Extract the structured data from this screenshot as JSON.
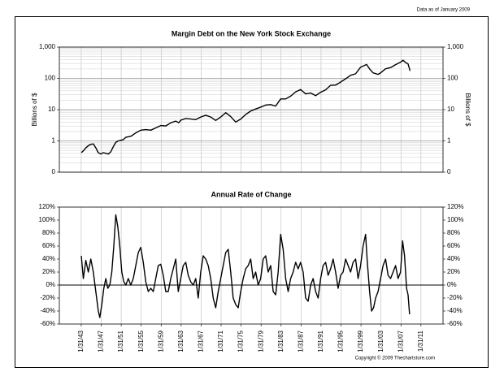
{
  "note": "Data as of January 2009",
  "copyright": "Copyright © 2009 Thechartstore.com",
  "chart_data": [
    {
      "type": "line",
      "title": "Margin Debt on the New York Stock Exchange",
      "y_label": "Billions of $",
      "log_scale": true,
      "grid": "both",
      "color": "#000000",
      "xlim": [
        1938.7,
        2015.5
      ],
      "xticks": [
        1943.08,
        1947.08,
        1951.08,
        1955.08,
        1959.08,
        1963.08,
        1967.08,
        1971.08,
        1975.08,
        1979.08,
        1983.08,
        1987.08,
        1991.08,
        1995.08,
        1999.08,
        2003.08,
        2007.08,
        2011.08
      ],
      "ylim": [
        0.1,
        1000
      ],
      "yticks": [
        {
          "value": 0.1,
          "label": "0"
        },
        1,
        10,
        100,
        {
          "value": 1000,
          "label": "1,000"
        }
      ],
      "x": [
        1943.1,
        1943.6,
        1944,
        1944.5,
        1945,
        1945.5,
        1946,
        1946.5,
        1947,
        1947.5,
        1948,
        1948.5,
        1949,
        1949.5,
        1950,
        1950.5,
        1951,
        1951.5,
        1952,
        1953,
        1954,
        1955,
        1956,
        1957,
        1958,
        1959,
        1960,
        1961,
        1962,
        1962.6,
        1963,
        1964,
        1965,
        1966,
        1967,
        1968,
        1969,
        1970,
        1971,
        1972,
        1973,
        1974,
        1975,
        1976,
        1977,
        1978,
        1979,
        1980,
        1981,
        1982,
        1983,
        1984,
        1985,
        1986,
        1987,
        1988,
        1989,
        1990,
        1991,
        1992,
        1993,
        1994,
        1995,
        1996,
        1997,
        1998,
        1999,
        2000.2,
        2000.8,
        2001.5,
        2002.5,
        2003,
        2004,
        2005,
        2006,
        2007,
        2007.5,
        2008,
        2008.5,
        2008.9
      ],
      "values": [
        0.42,
        0.5,
        0.6,
        0.7,
        0.78,
        0.8,
        0.6,
        0.42,
        0.38,
        0.42,
        0.4,
        0.38,
        0.45,
        0.65,
        0.9,
        1.0,
        1.05,
        1.1,
        1.3,
        1.4,
        1.8,
        2.2,
        2.3,
        2.2,
        2.6,
        3.1,
        3.0,
        3.8,
        4.3,
        3.8,
        4.6,
        5.2,
        5.0,
        4.8,
        5.8,
        6.6,
        5.8,
        4.5,
        5.8,
        8.0,
        6.0,
        4.0,
        5.0,
        7.0,
        9.0,
        10.5,
        12,
        14,
        14.5,
        13,
        22,
        22,
        27,
        37,
        44,
        32,
        34,
        28,
        36,
        43,
        60,
        61,
        76,
        97,
        126,
        140,
        228,
        278,
        200,
        150,
        134,
        150,
        203,
        221,
        275,
        330,
        381,
        320,
        290,
        175
      ]
    },
    {
      "type": "line",
      "title": "Annual Rate of Change",
      "log_scale": false,
      "grid": "x",
      "zero_line": true,
      "color": "#000000",
      "xlim": [
        1938.7,
        2015.5
      ],
      "xticks": [
        {
          "value": 1943.08,
          "label": "1/31/43"
        },
        {
          "value": 1947.08,
          "label": "1/31/47"
        },
        {
          "value": 1951.08,
          "label": "1/31/51"
        },
        {
          "value": 1955.08,
          "label": "1/31/55"
        },
        {
          "value": 1959.08,
          "label": "1/31/59"
        },
        {
          "value": 1963.08,
          "label": "1/31/63"
        },
        {
          "value": 1967.08,
          "label": "1/31/67"
        },
        {
          "value": 1971.08,
          "label": "1/31/71"
        },
        {
          "value": 1975.08,
          "label": "1/31/75"
        },
        {
          "value": 1979.08,
          "label": "1/31/79"
        },
        {
          "value": 1983.08,
          "label": "1/31/83"
        },
        {
          "value": 1987.08,
          "label": "1/31/87"
        },
        {
          "value": 1991.08,
          "label": "1/31/91"
        },
        {
          "value": 1995.08,
          "label": "1/31/95"
        },
        {
          "value": 1999.08,
          "label": "1/31/99"
        },
        {
          "value": 2003.08,
          "label": "1/31/03"
        },
        {
          "value": 2007.08,
          "label": "1/31/07"
        },
        {
          "value": 2011.08,
          "label": "1/31/11"
        }
      ],
      "ylim": [
        -60,
        120
      ],
      "yticks": [
        {
          "value": -60,
          "label": "-60%"
        },
        {
          "value": -40,
          "label": "-40%"
        },
        {
          "value": -20,
          "label": "-20%"
        },
        {
          "value": 0,
          "label": "0%"
        },
        {
          "value": 20,
          "label": "20%"
        },
        {
          "value": 40,
          "label": "40%"
        },
        {
          "value": 60,
          "label": "60%"
        },
        {
          "value": 80,
          "label": "80%"
        },
        {
          "value": 100,
          "label": "100%"
        },
        {
          "value": 120,
          "label": "120%"
        }
      ],
      "x": [
        1943.1,
        1943.5,
        1944,
        1944.5,
        1945,
        1945.5,
        1946,
        1946.5,
        1946.8,
        1947.2,
        1947.6,
        1948,
        1948.4,
        1948.8,
        1949.2,
        1949.6,
        1950,
        1950.4,
        1950.8,
        1951.2,
        1951.6,
        1952,
        1952.5,
        1953,
        1953.5,
        1954,
        1954.5,
        1955,
        1955.5,
        1956,
        1956.5,
        1957,
        1957.5,
        1958,
        1958.5,
        1959,
        1959.5,
        1960,
        1960.5,
        1961,
        1961.5,
        1962,
        1962.5,
        1963,
        1963.5,
        1964,
        1964.5,
        1965,
        1965.5,
        1966,
        1966.5,
        1967,
        1967.5,
        1968,
        1968.5,
        1969,
        1969.5,
        1970,
        1970.5,
        1971,
        1971.5,
        1972,
        1972.5,
        1973,
        1973.5,
        1974,
        1974.5,
        1975,
        1975.5,
        1976,
        1976.5,
        1977,
        1977.5,
        1978,
        1978.5,
        1979,
        1979.5,
        1980,
        1980.5,
        1981,
        1981.5,
        1982,
        1982.5,
        1983,
        1983.5,
        1984,
        1984.5,
        1985,
        1985.5,
        1986,
        1986.5,
        1987,
        1987.5,
        1988,
        1988.5,
        1989,
        1989.5,
        1990,
        1990.5,
        1991,
        1991.5,
        1992,
        1992.5,
        1993,
        1993.5,
        1994,
        1994.5,
        1995,
        1995.5,
        1996,
        1996.5,
        1997,
        1997.5,
        1998,
        1998.5,
        1999,
        1999.5,
        2000,
        2000.3,
        2000.8,
        2001.2,
        2001.6,
        2002,
        2002.5,
        2003,
        2003.5,
        2004,
        2004.5,
        2005,
        2005.5,
        2006,
        2006.5,
        2007,
        2007.4,
        2007.8,
        2008.2,
        2008.5,
        2008.8
      ],
      "values": [
        45,
        10,
        38,
        20,
        40,
        20,
        -10,
        -40,
        -50,
        -30,
        -5,
        10,
        -5,
        0,
        20,
        60,
        108,
        90,
        60,
        20,
        5,
        0,
        10,
        0,
        10,
        30,
        50,
        58,
        35,
        5,
        -10,
        -5,
        -10,
        10,
        30,
        32,
        15,
        -10,
        -10,
        10,
        25,
        40,
        -10,
        10,
        30,
        35,
        15,
        5,
        0,
        10,
        -20,
        20,
        45,
        40,
        30,
        10,
        -20,
        -35,
        -10,
        10,
        30,
        50,
        55,
        20,
        -20,
        -30,
        -35,
        -10,
        10,
        25,
        30,
        40,
        10,
        20,
        0,
        10,
        40,
        45,
        20,
        30,
        -10,
        -15,
        20,
        78,
        55,
        10,
        -10,
        10,
        20,
        35,
        25,
        35,
        20,
        -20,
        -25,
        0,
        10,
        -10,
        -20,
        10,
        30,
        35,
        15,
        25,
        40,
        20,
        -5,
        15,
        20,
        40,
        30,
        20,
        35,
        40,
        10,
        30,
        60,
        78,
        40,
        -10,
        -40,
        -35,
        -20,
        -10,
        10,
        30,
        40,
        15,
        10,
        20,
        30,
        10,
        20,
        68,
        45,
        -5,
        -15,
        -45
      ]
    }
  ]
}
